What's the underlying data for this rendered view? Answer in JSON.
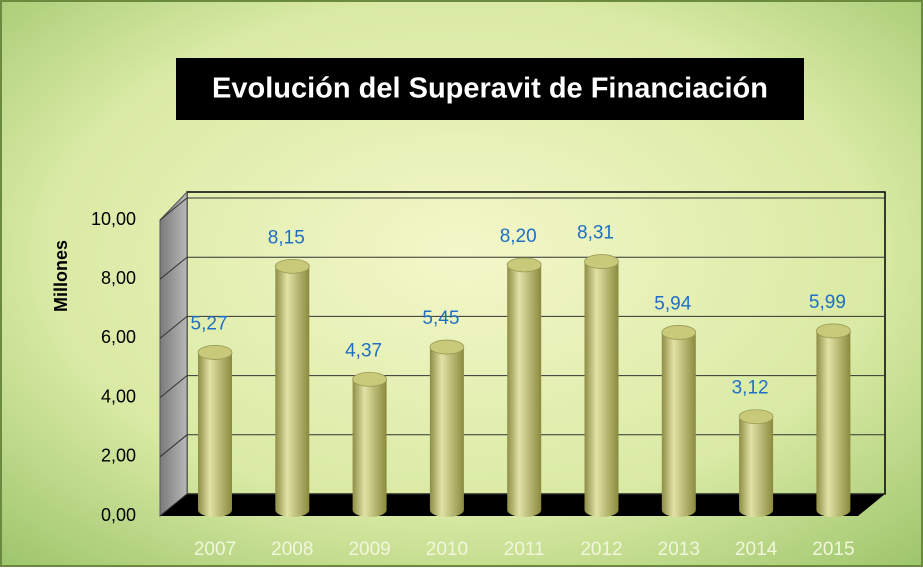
{
  "chart_data": {
    "type": "bar",
    "title": "Evolución del Superavit de Financiación",
    "y_axis_label": "Millones",
    "categories": [
      "2007",
      "2008",
      "2009",
      "2010",
      "2011",
      "2012",
      "2013",
      "2014",
      "2015"
    ],
    "values": [
      5.27,
      8.15,
      4.37,
      5.45,
      8.2,
      8.31,
      5.94,
      3.12,
      5.99
    ],
    "value_labels": [
      "5,27",
      "8,15",
      "4,37",
      "5,45",
      "8,20",
      "8,31",
      "5,94",
      "3,12",
      "5,99"
    ],
    "color": "#c9c97a",
    "ylim": [
      0,
      10
    ],
    "yticks": [
      {
        "value": 0,
        "label": "0,00"
      },
      {
        "value": 2,
        "label": "2,00"
      },
      {
        "value": 4,
        "label": "4,00"
      },
      {
        "value": 6,
        "label": "6,00"
      },
      {
        "value": 8,
        "label": "8,00"
      },
      {
        "value": 10,
        "label": "10,00"
      }
    ],
    "grid": true
  }
}
